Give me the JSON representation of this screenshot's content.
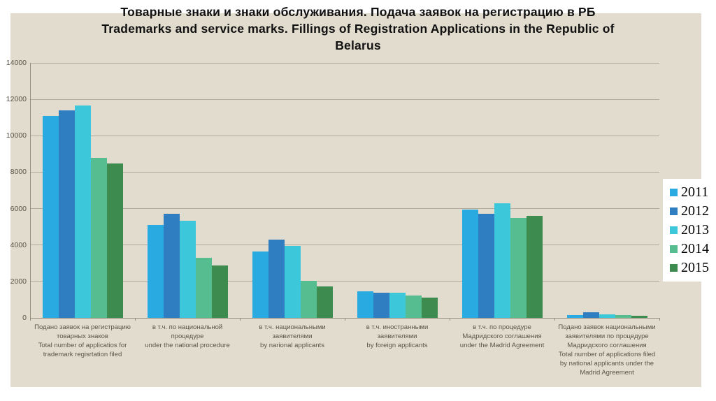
{
  "title": {
    "line1": "Товарные знаки и знаки обслуживания. Подача заявок на регистрацию в РБ",
    "line2": "Trademarks and service marks. Fillings of Registration Applications in the Republic of",
    "line3": "Belarus"
  },
  "colors": {
    "panel": "#e2dcce",
    "gridline": "#b2ab9d",
    "axis": "#97907f",
    "tick_text": "#595349",
    "title_text": "#111111",
    "legend_bg": "#ffffff"
  },
  "chart_data": {
    "type": "bar",
    "title": "Товарные знаки и знаки обслуживания. Подача заявок на регистрацию в РБ Trademarks and service marks. Fillings of Registration Applications in the Republic of Belarus",
    "categories": [
      {
        "ru": "Подано заявок на регистрацию товарных знаков",
        "en": "Total number of applicatios for trademark regisrtation filed"
      },
      {
        "ru": "в т.ч. по национальной процедуре",
        "en": "under the national procedure"
      },
      {
        "ru": "в т.ч. национальными заявителями",
        "en": "by narional applicants"
      },
      {
        "ru": "в т.ч. иностранными заявителями",
        "en": "by foreign applicants"
      },
      {
        "ru": "в т.ч. по процедуре Мадридского соглашения",
        "en": "under the Madrid Agreement"
      },
      {
        "ru": "Подано заявок национальными заявителями по процедуре Мадридского соглашения",
        "en": "Total number of applications filed by national applicants under the Madrid Agreement"
      }
    ],
    "series": [
      {
        "name": "2011",
        "color": "#29abe2",
        "values": [
          11100,
          5100,
          3650,
          1450,
          5950,
          170
        ]
      },
      {
        "name": "2012",
        "color": "#2e7ec1",
        "values": [
          11400,
          5700,
          4300,
          1400,
          5700,
          300
        ]
      },
      {
        "name": "2013",
        "color": "#3cc7da",
        "values": [
          11650,
          5350,
          3950,
          1380,
          6300,
          200
        ]
      },
      {
        "name": "2014",
        "color": "#56bd90",
        "values": [
          8800,
          3300,
          2050,
          1230,
          5500,
          140
        ]
      },
      {
        "name": "2015",
        "color": "#3e8b4f",
        "values": [
          8460,
          2870,
          1740,
          1130,
          5600,
          120
        ]
      }
    ],
    "ylim": [
      0,
      14000
    ],
    "yticks": [
      0,
      2000,
      4000,
      6000,
      8000,
      10000,
      12000,
      14000
    ],
    "grid": true,
    "legend_position": "right",
    "legend_entries": [
      "2011",
      "2012",
      "2013",
      "2014",
      "2015"
    ]
  }
}
